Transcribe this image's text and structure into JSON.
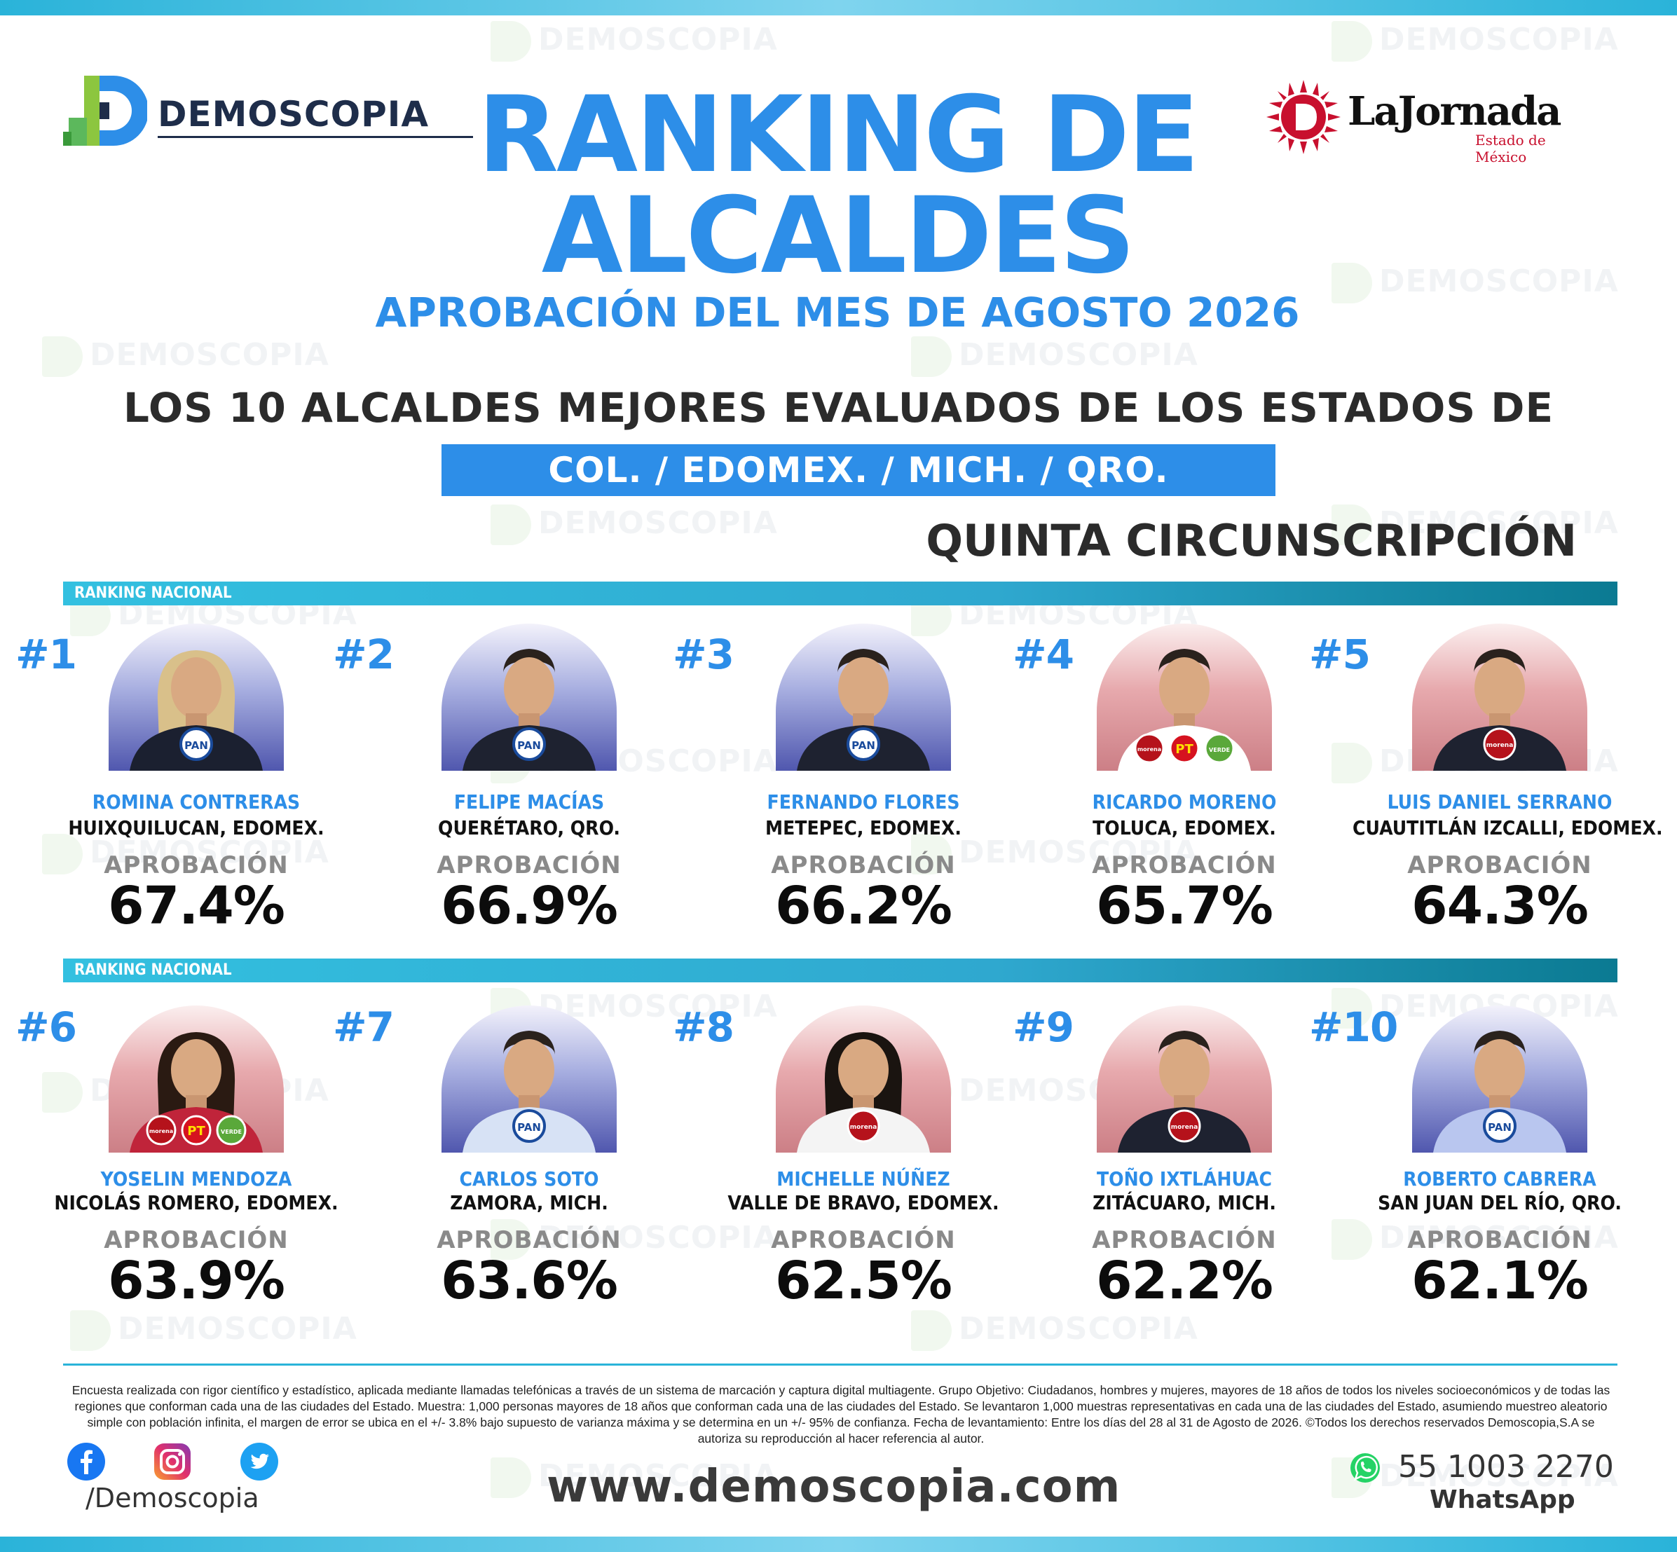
{
  "brand": {
    "left_logo": "DEMOSCOPIA",
    "right_logo": "LaJornada",
    "right_logo_sub": "Estado de México",
    "watermark": "DEMOSCOPIA"
  },
  "header": {
    "title_line1": "RANKING DE",
    "title_line2": "ALCALDES",
    "subtitle": "APROBACIÓN DEL MES DE AGOSTO 2026",
    "headline": "LOS 10 ALCALDES MEJORES EVALUADOS DE LOS ESTADOS DE",
    "states": "COL. /  EDOMEX.  /  MICH.  /  QRO.",
    "circunscripcion": "QUINTA CIRCUNSCRIPCIÓN"
  },
  "section_label_1": "RANKING NACIONAL",
  "section_label_2": "RANKING NACIONAL",
  "approval_label": "APROBACIÓN",
  "mayors": [
    {
      "rank": "#1",
      "name": "ROMINA CONTRERAS",
      "location": "HUIXQUILUCAN, EDOMEX.",
      "approval": "67.4%",
      "approval_value": 67.4,
      "party": "PAN",
      "bg": "blue"
    },
    {
      "rank": "#2",
      "name": "FELIPE MACÍAS",
      "location": "QUERÉTARO, QRO.",
      "approval": "66.9%",
      "approval_value": 66.9,
      "party": "PAN",
      "bg": "blue"
    },
    {
      "rank": "#3",
      "name": "FERNANDO FLORES",
      "location": "METEPEC, EDOMEX.",
      "approval": "66.2%",
      "approval_value": 66.2,
      "party": "PAN",
      "bg": "blue"
    },
    {
      "rank": "#4",
      "name": "RICARDO MORENO",
      "location": "TOLUCA, EDOMEX.",
      "approval": "65.7%",
      "approval_value": 65.7,
      "party": "morena-PT-VERDE",
      "bg": "red"
    },
    {
      "rank": "#5",
      "name": "LUIS DANIEL SERRANO",
      "location": "CUAUTITLÁN IZCALLI, EDOMEX.",
      "approval": "64.3%",
      "approval_value": 64.3,
      "party": "morena",
      "bg": "red"
    },
    {
      "rank": "#6",
      "name": "YOSELIN MENDOZA",
      "location": "NICOLÁS ROMERO, EDOMEX.",
      "approval": "63.9%",
      "approval_value": 63.9,
      "party": "morena-PT-VERDE",
      "bg": "red"
    },
    {
      "rank": "#7",
      "name": "CARLOS SOTO",
      "location": "ZAMORA, MICH.",
      "approval": "63.6%",
      "approval_value": 63.6,
      "party": "PAN",
      "bg": "blue"
    },
    {
      "rank": "#8",
      "name": "MICHELLE NÚÑEZ",
      "location": "VALLE DE BRAVO, EDOMEX.",
      "approval": "62.5%",
      "approval_value": 62.5,
      "party": "morena",
      "bg": "red"
    },
    {
      "rank": "#9",
      "name": "TOÑO IXTLÁHUAC",
      "location": "ZITÁCUARO, MICH.",
      "approval": "62.2%",
      "approval_value": 62.2,
      "party": "morena",
      "bg": "red"
    },
    {
      "rank": "#10",
      "name": "ROBERTO CABRERA",
      "location": "SAN JUAN DEL RÍO, QRO.",
      "approval": "62.1%",
      "approval_value": 62.1,
      "party": "PAN",
      "bg": "blue"
    }
  ],
  "footer": {
    "methodology": "Encuesta realizada con rigor científico y estadístico, aplicada mediante llamadas telefónicas a través de un sistema de marcación y captura digital multiagente. Grupo Objetivo: Ciudadanos, hombres y mujeres, mayores de 18 años de todos los niveles socioeconómicos y de todas las regiones que conforman cada una de las ciudades del Estado. Muestra: 1,000 personas mayores de 18 años que conforman cada una de las ciudades del Estado. Se levantaron 1,000 muestras representativas en cada una de las ciudades del Estado, asumiendo muestreo aleatorio simple con población infinita, el margen de error se ubica en el +/- 3.8% bajo supuesto de varianza máxima y se determina en un +/- 95% de confianza. Fecha de levantamiento: Entre los días del 28 al 31 de Agosto de 2026. ©Todos los derechos reservados Demoscopia,S.A se autoriza su reproducción al hacer referencia al autor.",
    "social_handle": "/Demoscopia",
    "website": "www.demoscopia.com",
    "phone": "55 1003 2270",
    "whatsapp_label": "WhatsApp"
  },
  "colors": {
    "accent_blue": "#2d8ee8",
    "bar_cyan": "#2ab3d9",
    "dark_text": "#2b2b2b",
    "pan_blue": "#1a4b9c",
    "morena_red": "#b5121b",
    "verde_green": "#5aa83a"
  },
  "icons": [
    "facebook-icon",
    "instagram-icon",
    "twitter-icon",
    "whatsapp-icon"
  ]
}
